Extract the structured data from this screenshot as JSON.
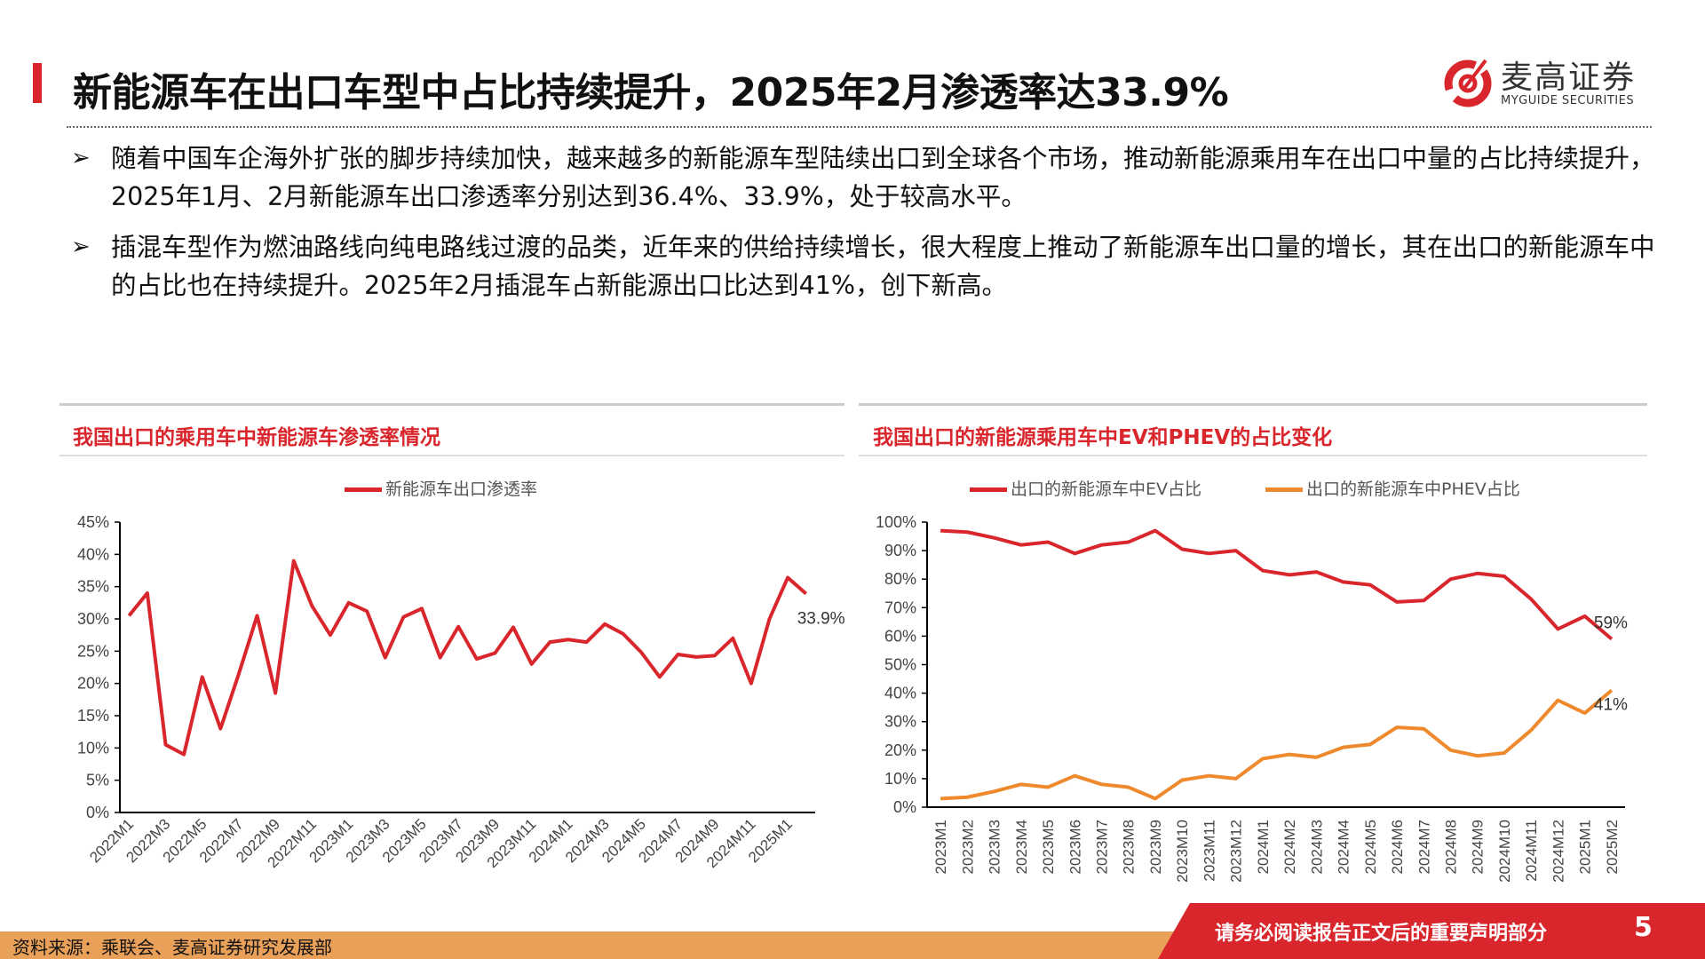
{
  "header": {
    "title": "新能源车在出口车型中占比持续提升，2025年2月渗透率达33.9%",
    "logo_cn": "麦高证券",
    "logo_en": "MYGUIDE SECURITIES"
  },
  "bullets": [
    "随着中国车企海外扩张的脚步持续加快，越来越多的新能源车型陆续出口到全球各个市场，推动新能源乘用车在出口中量的占比持续提升，2025年1月、2月新能源车出口渗透率分别达到36.4%、33.9%，处于较高水平。",
    "插混车型作为燃油路线向纯电路线过渡的品类，近年来的供给持续增长，很大程度上推动了新能源车出口量的增长，其在出口的新能源车中的占比也在持续提升。2025年2月插混车占新能源出口比达到41%，创下新高。"
  ],
  "bullet_marker": "➢",
  "footer": {
    "source": "资料来源：乘联会、麦高证券研究发展部",
    "disclaimer": "请务必阅读报告正文后的重要声明部分",
    "page": "5"
  },
  "colors": {
    "red": "#d9262c",
    "orange": "#ee8a2d",
    "footer_orange": "#e9a059"
  },
  "chart_data": [
    {
      "type": "line",
      "title": "我国出口的乘用车中新能源车渗透率情况",
      "x": [
        "2022M1",
        "2022M2",
        "2022M3",
        "2022M4",
        "2022M5",
        "2022M6",
        "2022M7",
        "2022M8",
        "2022M9",
        "2022M10",
        "2022M11",
        "2022M12",
        "2023M1",
        "2023M2",
        "2023M3",
        "2023M4",
        "2023M5",
        "2023M6",
        "2023M7",
        "2023M8",
        "2023M9",
        "2023M10",
        "2023M11",
        "2023M12",
        "2024M1",
        "2024M2",
        "2024M3",
        "2024M4",
        "2024M5",
        "2024M6",
        "2024M7",
        "2024M8",
        "2024M9",
        "2024M10",
        "2024M11",
        "2024M12",
        "2025M1",
        "2025M2"
      ],
      "xticks": [
        "2022M1",
        "2022M3",
        "2022M5",
        "2022M7",
        "2022M9",
        "2022M11",
        "2023M1",
        "2023M3",
        "2023M5",
        "2023M7",
        "2023M9",
        "2023M11",
        "2024M1",
        "2024M3",
        "2024M5",
        "2024M7",
        "2024M9",
        "2024M11",
        "2025M1"
      ],
      "series": [
        {
          "name": "新能源车出口渗透率",
          "color": "#d9262c",
          "values": [
            30.5,
            34,
            10.5,
            9,
            21,
            13,
            21.5,
            30.5,
            18.5,
            39,
            32,
            27.5,
            32.5,
            31.2,
            24,
            30.3,
            31.6,
            24,
            28.8,
            23.8,
            24.7,
            28.7,
            23,
            26.4,
            26.8,
            26.4,
            29.2,
            27.7,
            24.8,
            21,
            24.5,
            24.1,
            24.3,
            27,
            20,
            30,
            36.4,
            33.9
          ]
        }
      ],
      "ylim": [
        0,
        45
      ],
      "yticks": [
        "0%",
        "5%",
        "10%",
        "15%",
        "20%",
        "25%",
        "30%",
        "35%",
        "40%",
        "45%"
      ],
      "annotations": [
        "33.9%"
      ],
      "legend": "top",
      "grid": false
    },
    {
      "type": "line",
      "title": "我国出口的新能源乘用车中EV和PHEV的占比变化",
      "x": [
        "2023M1",
        "2023M2",
        "2023M3",
        "2023M4",
        "2023M5",
        "2023M6",
        "2023M7",
        "2023M8",
        "2023M9",
        "2023M10",
        "2023M11",
        "2023M12",
        "2024M1",
        "2024M2",
        "2024M3",
        "2024M4",
        "2024M5",
        "2024M6",
        "2024M7",
        "2024M8",
        "2024M9",
        "2024M10",
        "2024M11",
        "2024M12",
        "2025M1",
        "2025M2"
      ],
      "series": [
        {
          "name": "出口的新能源车中EV占比",
          "color": "#d9262c",
          "values": [
            97,
            96.5,
            94.5,
            92,
            93,
            89,
            92,
            93,
            97,
            90.5,
            89,
            90,
            83,
            81.5,
            82.5,
            79,
            78,
            72,
            72.5,
            80,
            82,
            81,
            73,
            62.5,
            67,
            59
          ]
        },
        {
          "name": "出口的新能源车中PHEV占比",
          "color": "#ee8a2d",
          "values": [
            3,
            3.5,
            5.5,
            8,
            7,
            11,
            8,
            7,
            3,
            9.5,
            11,
            10,
            17,
            18.5,
            17.5,
            21,
            22,
            28,
            27.5,
            20,
            18,
            19,
            27,
            37.5,
            33,
            41
          ]
        }
      ],
      "ylim": [
        0,
        100
      ],
      "yticks": [
        "0%",
        "10%",
        "20%",
        "30%",
        "40%",
        "50%",
        "60%",
        "70%",
        "80%",
        "90%",
        "100%"
      ],
      "annotations": [
        "59%",
        "41%"
      ],
      "legend": "top",
      "grid": false
    }
  ]
}
